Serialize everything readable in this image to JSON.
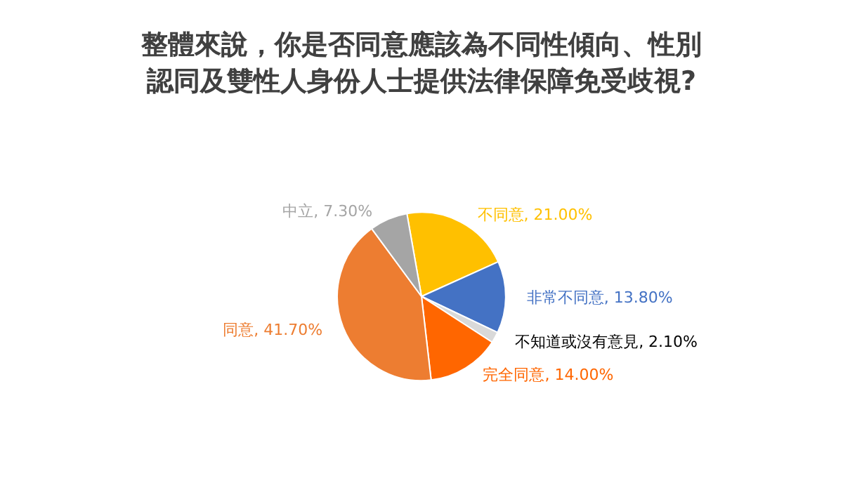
{
  "chart_data": {
    "type": "pie",
    "title": "整體來說，你是否同意應該為不同性傾向、性別認同及雙性人身份人士提供法律保障免受歧視?",
    "categories": [
      "不同意",
      "非常不同意",
      "不知道或沒有意見",
      "完全同意",
      "同意",
      "中立"
    ],
    "values": [
      21.0,
      13.8,
      2.1,
      14.0,
      41.7,
      7.3
    ],
    "value_labels": [
      "21.00%",
      "13.80%",
      "2.10%",
      "14.00%",
      "41.70%",
      "7.30%"
    ],
    "colors": [
      "#ffc000",
      "#4472c4",
      "#d9d9d9",
      "#ff6600",
      "#ed7d31",
      "#a5a5a5"
    ],
    "legend": false
  }
}
